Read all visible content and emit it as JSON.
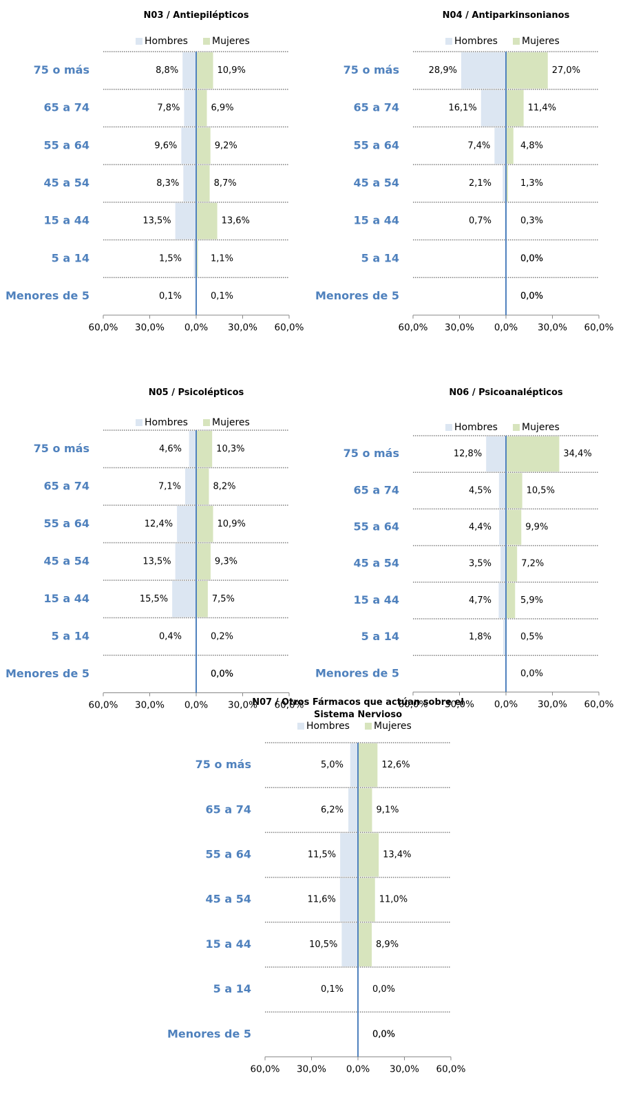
{
  "chart_data": [
    {
      "type": "pyramid",
      "title": "N03 / Antiepilépticos",
      "categories": [
        "75 o más",
        "65 a 74",
        "55 a 64",
        "45 a 54",
        "15 a 44",
        "5 a 14",
        "Menores de 5"
      ],
      "series": [
        {
          "name": "Hombres",
          "color": "#dce6f2",
          "values": [
            -8.8,
            -7.8,
            -9.6,
            -8.3,
            -13.5,
            -1.5,
            -0.1
          ],
          "value_labels": [
            "8,8%",
            "7,8%",
            "9,6%",
            "8,3%",
            "13,5%",
            "1,5%",
            "0,1%"
          ]
        },
        {
          "name": "Mujeres",
          "color": "#d7e4bd",
          "values": [
            10.9,
            6.9,
            9.2,
            8.7,
            13.6,
            1.1,
            0.1
          ],
          "value_labels": [
            "10,9%",
            "6,9%",
            "9,2%",
            "8,7%",
            "13,6%",
            "1,1%",
            "0,1%"
          ]
        }
      ],
      "xlim": [
        -60,
        60
      ],
      "xticks": [
        {
          "value": -60,
          "label": "60,0%"
        },
        {
          "value": -30,
          "label": "30,0%"
        },
        {
          "value": 0,
          "label": "0,0%"
        },
        {
          "value": 30,
          "label": "30,0%"
        },
        {
          "value": 60,
          "label": "60,0%"
        }
      ]
    },
    {
      "type": "pyramid",
      "title": "N04 / Antiparkinsonianos",
      "categories": [
        "75 o más",
        "65 a 74",
        "55 a 64",
        "45 a 54",
        "15 a 44",
        "5 a 14",
        "Menores de 5"
      ],
      "series": [
        {
          "name": "Hombres",
          "color": "#dce6f2",
          "values": [
            -28.9,
            -16.1,
            -7.4,
            -2.1,
            -0.7,
            0,
            0
          ],
          "value_labels": [
            "28,9%",
            "16,1%",
            "7,4%",
            "2,1%",
            "0,7%",
            "0,0%",
            "0,0%"
          ]
        },
        {
          "name": "Mujeres",
          "color": "#d7e4bd",
          "values": [
            27.0,
            11.4,
            4.8,
            1.3,
            0.3,
            0,
            0
          ],
          "value_labels": [
            "27,0%",
            "11,4%",
            "4,8%",
            "1,3%",
            "0,3%",
            "0,0%",
            "0,0%"
          ]
        }
      ],
      "xlim": [
        -60,
        60
      ],
      "xticks": [
        {
          "value": -60,
          "label": "60,0%"
        },
        {
          "value": -30,
          "label": "30,0%"
        },
        {
          "value": 0,
          "label": "0,0%"
        },
        {
          "value": 30,
          "label": "30,0%"
        },
        {
          "value": 60,
          "label": "60,0%"
        }
      ]
    },
    {
      "type": "pyramid",
      "title": "N05 / Psicolépticos",
      "categories": [
        "75 o más",
        "65 a 74",
        "55 a 64",
        "45 a 54",
        "15 a 44",
        "5 a 14",
        "Menores de 5"
      ],
      "series": [
        {
          "name": "Hombres",
          "color": "#dce6f2",
          "values": [
            -4.6,
            -7.1,
            -12.4,
            -13.5,
            -15.5,
            -0.4,
            0
          ],
          "value_labels": [
            "4,6%",
            "7,1%",
            "12,4%",
            "13,5%",
            "15,5%",
            "0,4%",
            "0,0%"
          ]
        },
        {
          "name": "Mujeres",
          "color": "#d7e4bd",
          "values": [
            10.3,
            8.2,
            10.9,
            9.3,
            7.5,
            0.2,
            0
          ],
          "value_labels": [
            "10,3%",
            "8,2%",
            "10,9%",
            "9,3%",
            "7,5%",
            "0,2%",
            "0,0%"
          ]
        }
      ],
      "xlim": [
        -60,
        60
      ],
      "xticks": [
        {
          "value": -60,
          "label": "60,0%"
        },
        {
          "value": -30,
          "label": "30,0%"
        },
        {
          "value": 0,
          "label": "0,0%"
        },
        {
          "value": 30,
          "label": "30,0%"
        },
        {
          "value": 60,
          "label": "60,0%"
        }
      ]
    },
    {
      "type": "pyramid",
      "title": "N06 / Psicoanalépticos",
      "categories": [
        "75 o más",
        "65 a 74",
        "55 a 64",
        "45 a 54",
        "15 a 44",
        "5 a 14",
        "Menores de 5"
      ],
      "series": [
        {
          "name": "Hombres",
          "color": "#dce6f2",
          "values": [
            -12.8,
            -4.5,
            -4.4,
            -3.5,
            -4.7,
            -1.8,
            null
          ],
          "value_labels": [
            "12,8%",
            "4,5%",
            "4,4%",
            "3,5%",
            "4,7%",
            "1,8%",
            null
          ]
        },
        {
          "name": "Mujeres",
          "color": "#d7e4bd",
          "values": [
            34.4,
            10.5,
            9.9,
            7.2,
            5.9,
            0.5,
            0
          ],
          "value_labels": [
            "34,4%",
            "10,5%",
            "9,9%",
            "7,2%",
            "5,9%",
            "0,5%",
            "0,0%"
          ]
        }
      ],
      "xlim": [
        -60,
        60
      ],
      "xticks": [
        {
          "value": -60,
          "label": "60,0%"
        },
        {
          "value": -30,
          "label": "30,0%"
        },
        {
          "value": 0,
          "label": "0,0%"
        },
        {
          "value": 30,
          "label": "30,0%"
        },
        {
          "value": 60,
          "label": "60,0%"
        }
      ]
    },
    {
      "type": "pyramid",
      "title": "N07 / Otros Fármacos que actúan sobre el Sistema Nervioso",
      "categories": [
        "75 o más",
        "65 a 74",
        "55 a 64",
        "45 a 54",
        "15 a 44",
        "5 a 14",
        "Menores de 5"
      ],
      "series": [
        {
          "name": "Hombres",
          "color": "#dce6f2",
          "values": [
            -5.0,
            -6.2,
            -11.5,
            -11.6,
            -10.5,
            -0.1,
            0
          ],
          "value_labels": [
            "5,0%",
            "6,2%",
            "11,5%",
            "11,6%",
            "10,5%",
            "0,1%",
            "0,0%"
          ]
        },
        {
          "name": "Mujeres",
          "color": "#d7e4bd",
          "values": [
            12.6,
            9.1,
            13.4,
            11.0,
            8.9,
            0,
            0
          ],
          "value_labels": [
            "12,6%",
            "9,1%",
            "13,4%",
            "11,0%",
            "8,9%",
            "0,0%",
            "0,0%"
          ]
        }
      ],
      "xlim": [
        -60,
        60
      ],
      "xticks": [
        {
          "value": -60,
          "label": "60,0%"
        },
        {
          "value": -30,
          "label": "30,0%"
        },
        {
          "value": 0,
          "label": "0,0%"
        },
        {
          "value": 30,
          "label": "30,0%"
        },
        {
          "value": 60,
          "label": "60,0%"
        }
      ]
    }
  ]
}
